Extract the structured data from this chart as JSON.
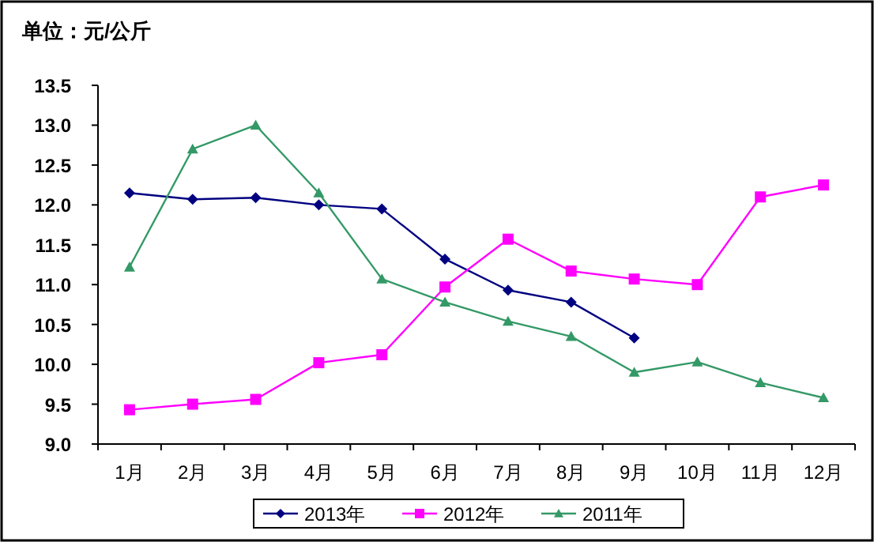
{
  "chart_data": {
    "type": "line",
    "title": "单位：元/公斤",
    "categories": [
      "1月",
      "2月",
      "3月",
      "4月",
      "5月",
      "6月",
      "7月",
      "8月",
      "9月",
      "10月",
      "11月",
      "12月"
    ],
    "series": [
      {
        "name": "2013年",
        "color": "#000080",
        "marker": "diamond",
        "values": [
          12.15,
          12.07,
          12.09,
          12.0,
          11.95,
          11.32,
          10.93,
          10.78,
          10.33,
          null,
          null,
          null
        ]
      },
      {
        "name": "2012年",
        "color": "#ff00ff",
        "marker": "square",
        "values": [
          9.43,
          9.5,
          9.56,
          10.02,
          10.12,
          10.97,
          11.57,
          11.17,
          11.07,
          11.0,
          12.1,
          12.25
        ]
      },
      {
        "name": "2011年",
        "color": "#339966",
        "marker": "triangle",
        "values": [
          11.22,
          12.7,
          13.0,
          12.15,
          11.07,
          10.78,
          10.54,
          10.35,
          9.9,
          10.03,
          9.77,
          9.58
        ]
      }
    ],
    "ylim": [
      9.0,
      13.5
    ],
    "yticks": [
      {
        "value": 9.0,
        "label": "9.0"
      },
      {
        "value": 9.5,
        "label": "9.5"
      },
      {
        "value": 10.0,
        "label": "10.0"
      },
      {
        "value": 10.5,
        "label": "10.5"
      },
      {
        "value": 11.0,
        "label": "11.0"
      },
      {
        "value": 11.5,
        "label": "11.5"
      },
      {
        "value": 12.0,
        "label": "12.0"
      },
      {
        "value": 12.5,
        "label": "12.5"
      },
      {
        "value": 13.0,
        "label": "13.0"
      },
      {
        "value": 13.5,
        "label": "13.5"
      }
    ],
    "grid": false,
    "legend": "bottom"
  }
}
